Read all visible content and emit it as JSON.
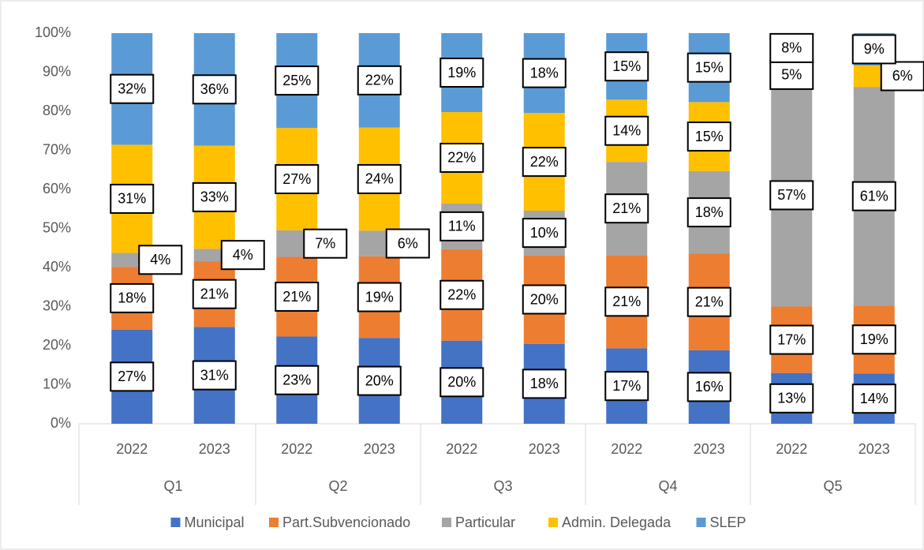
{
  "chart_data": {
    "type": "bar",
    "stacking": "percent",
    "groups": [
      "Q1",
      "Q2",
      "Q3",
      "Q4",
      "Q5"
    ],
    "categories": [
      "2022",
      "2023",
      "2022",
      "2023",
      "2022",
      "2023",
      "2022",
      "2023",
      "2022",
      "2023"
    ],
    "series": [
      {
        "name": "Municipal",
        "color": "#4472c4",
        "values": [
          27,
          31,
          23,
          20,
          20,
          18,
          17,
          16,
          13,
          14
        ],
        "value_labels": [
          "27%",
          "31%",
          "23%",
          "20%",
          "20%",
          "18%",
          "17%",
          "16%",
          "13%",
          "14%"
        ]
      },
      {
        "name": "Part.Subvencionado",
        "color": "#ed7d31",
        "values": [
          18,
          21,
          21,
          19,
          22,
          20,
          21,
          21,
          17,
          19
        ],
        "value_labels": [
          "18%",
          "21%",
          "21%",
          "19%",
          "22%",
          "20%",
          "21%",
          "21%",
          "17%",
          "19%"
        ]
      },
      {
        "name": "Particular",
        "color": "#a5a5a5",
        "values": [
          4,
          4,
          7,
          6,
          11,
          10,
          21,
          18,
          57,
          61
        ],
        "value_labels": [
          "4%",
          "4%",
          "7%",
          "6%",
          "11%",
          "10%",
          "21%",
          "18%",
          "57%",
          "61%"
        ]
      },
      {
        "name": "Admin. Delegada",
        "color": "#ffc000",
        "values": [
          31,
          33,
          27,
          24,
          22,
          22,
          14,
          15,
          5,
          6
        ],
        "value_labels": [
          "31%",
          "33%",
          "27%",
          "24%",
          "22%",
          "22%",
          "14%",
          "15%",
          "5%",
          "6%"
        ]
      },
      {
        "name": "SLEP",
        "color": "#5b9bd5",
        "values": [
          32,
          36,
          25,
          22,
          19,
          18,
          15,
          15,
          8,
          9
        ],
        "value_labels": [
          "32%",
          "36%",
          "25%",
          "22%",
          "19%",
          "18%",
          "15%",
          "15%",
          "8%",
          "9%"
        ]
      }
    ],
    "ylim": [
      0,
      100
    ],
    "yticks": [
      {
        "value": 0,
        "label": "0%"
      },
      {
        "value": 10,
        "label": "10%"
      },
      {
        "value": 20,
        "label": "20%"
      },
      {
        "value": 30,
        "label": "30%"
      },
      {
        "value": 40,
        "label": "40%"
      },
      {
        "value": 50,
        "label": "50%"
      },
      {
        "value": 60,
        "label": "60%"
      },
      {
        "value": 70,
        "label": "70%"
      },
      {
        "value": 80,
        "label": "80%"
      },
      {
        "value": 90,
        "label": "90%"
      },
      {
        "value": 100,
        "label": "100%"
      }
    ],
    "grid": false,
    "legend": "bottom"
  }
}
